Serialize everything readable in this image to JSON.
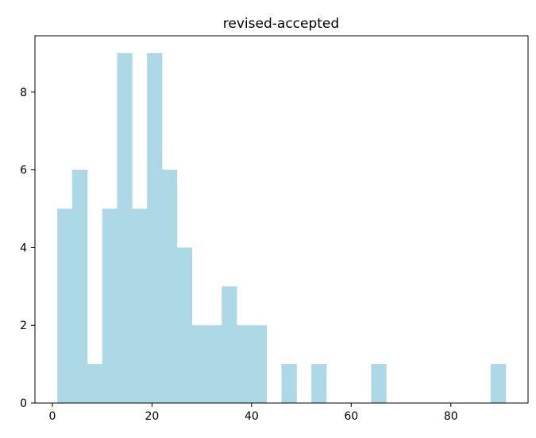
{
  "chart_data": {
    "type": "histogram",
    "title": "revised-accepted",
    "xlabel": "",
    "ylabel": "",
    "bar_color": "#add8e6",
    "bin_width": 3.0,
    "bins": [
      {
        "x0": 1.0,
        "x1": 4.0,
        "count": 5
      },
      {
        "x0": 4.0,
        "x1": 7.0,
        "count": 6
      },
      {
        "x0": 7.0,
        "x1": 10.0,
        "count": 1
      },
      {
        "x0": 10.0,
        "x1": 13.0,
        "count": 5
      },
      {
        "x0": 13.0,
        "x1": 16.0,
        "count": 9
      },
      {
        "x0": 16.0,
        "x1": 19.0,
        "count": 5
      },
      {
        "x0": 19.0,
        "x1": 22.0,
        "count": 9
      },
      {
        "x0": 22.0,
        "x1": 25.0,
        "count": 6
      },
      {
        "x0": 25.0,
        "x1": 28.0,
        "count": 4
      },
      {
        "x0": 28.0,
        "x1": 31.0,
        "count": 2
      },
      {
        "x0": 31.0,
        "x1": 34.0,
        "count": 2
      },
      {
        "x0": 34.0,
        "x1": 37.0,
        "count": 3
      },
      {
        "x0": 37.0,
        "x1": 40.0,
        "count": 2
      },
      {
        "x0": 40.0,
        "x1": 43.0,
        "count": 2
      },
      {
        "x0": 43.0,
        "x1": 46.0,
        "count": 0
      },
      {
        "x0": 46.0,
        "x1": 49.0,
        "count": 1
      },
      {
        "x0": 49.0,
        "x1": 52.0,
        "count": 0
      },
      {
        "x0": 52.0,
        "x1": 55.0,
        "count": 1
      },
      {
        "x0": 55.0,
        "x1": 58.0,
        "count": 0
      },
      {
        "x0": 58.0,
        "x1": 61.0,
        "count": 0
      },
      {
        "x0": 61.0,
        "x1": 64.0,
        "count": 0
      },
      {
        "x0": 64.0,
        "x1": 67.0,
        "count": 1
      },
      {
        "x0": 67.0,
        "x1": 70.0,
        "count": 0
      },
      {
        "x0": 70.0,
        "x1": 73.0,
        "count": 0
      },
      {
        "x0": 73.0,
        "x1": 76.0,
        "count": 0
      },
      {
        "x0": 76.0,
        "x1": 79.0,
        "count": 0
      },
      {
        "x0": 79.0,
        "x1": 82.0,
        "count": 0
      },
      {
        "x0": 82.0,
        "x1": 85.0,
        "count": 0
      },
      {
        "x0": 85.0,
        "x1": 88.0,
        "count": 0
      },
      {
        "x0": 88.0,
        "x1": 91.0,
        "count": 1
      }
    ],
    "xlim": [
      -3.5,
      95.5
    ],
    "ylim": [
      0,
      9.45
    ],
    "x_ticks": [
      0,
      20,
      40,
      60,
      80
    ],
    "y_ticks": [
      0,
      2,
      4,
      6,
      8
    ],
    "grid": false
  }
}
